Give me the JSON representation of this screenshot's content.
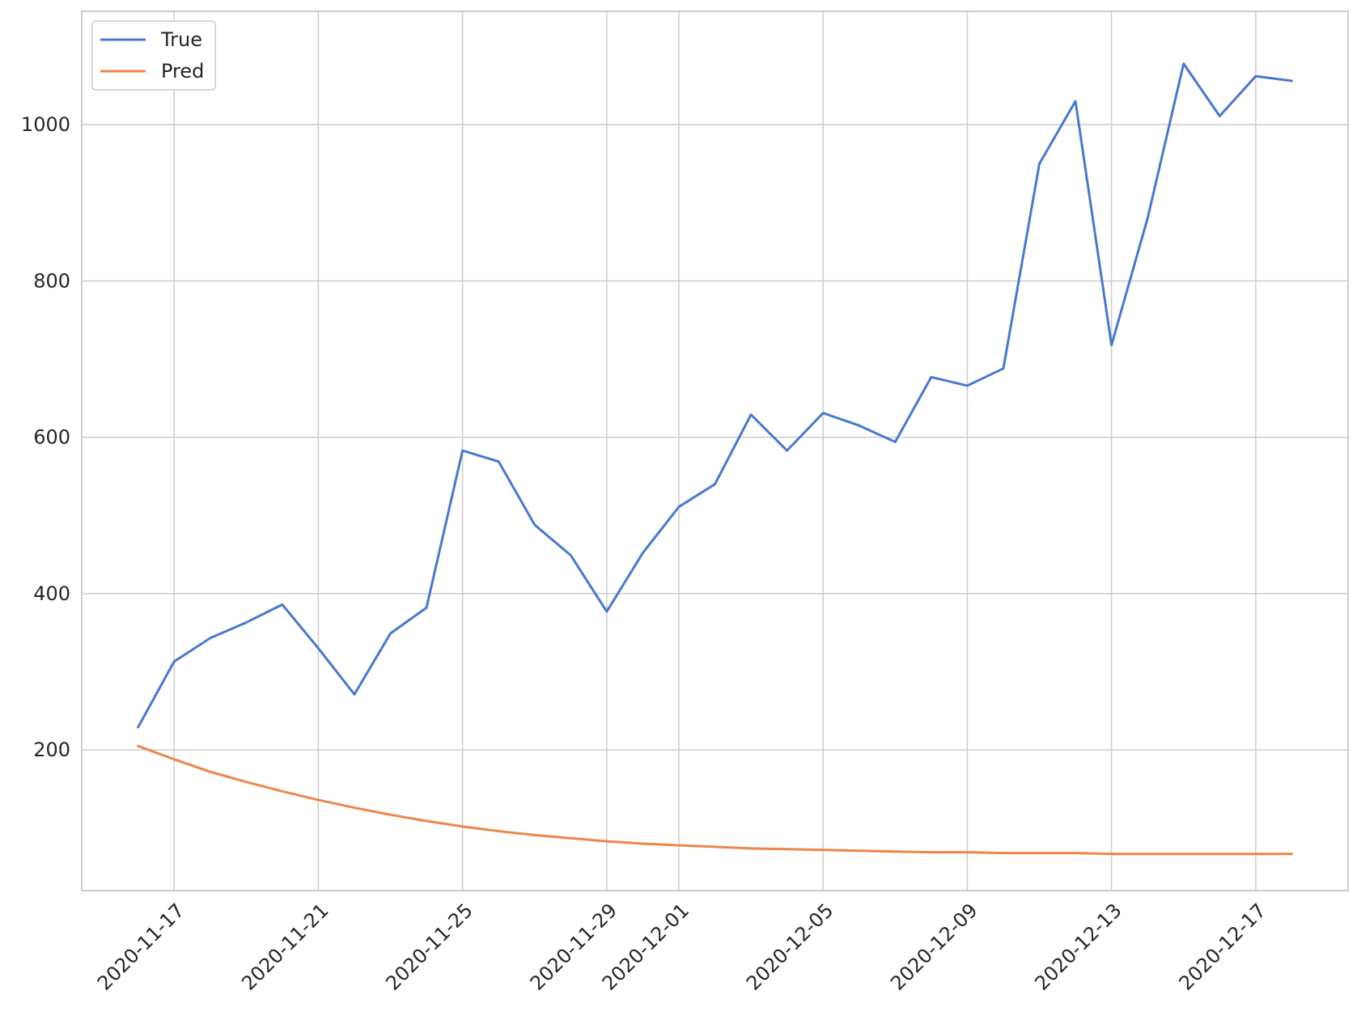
{
  "chart_data": {
    "type": "line",
    "title": "",
    "xlabel": "",
    "ylabel": "",
    "x": [
      "2020-11-16",
      "2020-11-17",
      "2020-11-18",
      "2020-11-19",
      "2020-11-20",
      "2020-11-21",
      "2020-11-22",
      "2020-11-23",
      "2020-11-24",
      "2020-11-25",
      "2020-11-26",
      "2020-11-27",
      "2020-11-28",
      "2020-11-29",
      "2020-11-30",
      "2020-12-01",
      "2020-12-02",
      "2020-12-03",
      "2020-12-04",
      "2020-12-05",
      "2020-12-06",
      "2020-12-07",
      "2020-12-08",
      "2020-12-09",
      "2020-12-10",
      "2020-12-11",
      "2020-12-12",
      "2020-12-13",
      "2020-12-14",
      "2020-12-15",
      "2020-12-16",
      "2020-12-17",
      "2020-12-18"
    ],
    "xticks": [
      "2020-11-17",
      "2020-11-21",
      "2020-11-25",
      "2020-11-29",
      "2020-12-01",
      "2020-12-05",
      "2020-12-09",
      "2020-12-13",
      "2020-12-17"
    ],
    "yticks": [
      200,
      400,
      600,
      800,
      1000
    ],
    "ylim": [
      20,
      1145
    ],
    "xlim": [
      "2020-11-14T10:30",
      "2020-12-19T13:30"
    ],
    "grid": true,
    "legend_position": "top-left",
    "series": [
      {
        "name": "True",
        "color": "#4878d0",
        "values": [
          229,
          313,
          343,
          363,
          386,
          330,
          271,
          349,
          382,
          583,
          569,
          488,
          449,
          377,
          452,
          511,
          540,
          629,
          583,
          631,
          615,
          594,
          677,
          666,
          688,
          950,
          1030,
          718,
          880,
          1078,
          1011,
          1062,
          1056
        ]
      },
      {
        "name": "Pred",
        "color": "#ee854a",
        "values": [
          205,
          188,
          172,
          159,
          147,
          136,
          126,
          117,
          109,
          102,
          96,
          91,
          87,
          83,
          80,
          78,
          76,
          74,
          73,
          72,
          71,
          70,
          69,
          69,
          68,
          68,
          68,
          67,
          67,
          67,
          67,
          67,
          67
        ]
      }
    ]
  }
}
